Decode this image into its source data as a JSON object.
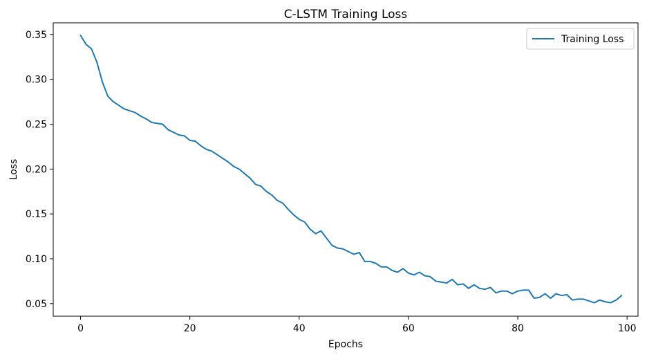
{
  "chart_data": {
    "type": "line",
    "title": "C-LSTM Training Loss",
    "xlabel": "Epochs",
    "ylabel": "Loss",
    "xlim": [
      -5,
      102
    ],
    "ylim": [
      0.036,
      0.363
    ],
    "xticks": [
      0,
      20,
      40,
      60,
      80,
      100
    ],
    "yticks": [
      0.05,
      0.1,
      0.15,
      0.2,
      0.25,
      0.3,
      0.35
    ],
    "xtick_labels": [
      "0",
      "20",
      "40",
      "60",
      "80",
      "100"
    ],
    "ytick_labels": [
      "0.05",
      "0.10",
      "0.15",
      "0.20",
      "0.25",
      "0.30",
      "0.35"
    ],
    "grid": false,
    "legend_position": "top-right",
    "series": [
      {
        "name": "Training Loss",
        "color": "#1f77b4",
        "x": [
          0,
          1,
          2,
          3,
          4,
          5,
          6,
          7,
          8,
          9,
          10,
          11,
          12,
          13,
          14,
          15,
          16,
          17,
          18,
          19,
          20,
          21,
          22,
          23,
          24,
          25,
          26,
          27,
          28,
          29,
          30,
          31,
          32,
          33,
          34,
          35,
          36,
          37,
          38,
          39,
          40,
          41,
          42,
          43,
          44,
          45,
          46,
          47,
          48,
          49,
          50,
          51,
          52,
          53,
          54,
          55,
          56,
          57,
          58,
          59,
          60,
          61,
          62,
          63,
          64,
          65,
          66,
          67,
          68,
          69,
          70,
          71,
          72,
          73,
          74,
          75,
          76,
          77,
          78,
          79,
          80,
          81,
          82,
          83,
          84,
          85,
          86,
          87,
          88,
          89,
          90,
          91,
          92,
          93,
          94,
          95,
          96,
          97,
          98,
          99
        ],
        "values": [
          0.349,
          0.339,
          0.334,
          0.319,
          0.297,
          0.281,
          0.275,
          0.271,
          0.267,
          0.265,
          0.263,
          0.259,
          0.256,
          0.252,
          0.251,
          0.25,
          0.244,
          0.241,
          0.238,
          0.237,
          0.232,
          0.231,
          0.226,
          0.222,
          0.22,
          0.216,
          0.212,
          0.208,
          0.203,
          0.2,
          0.195,
          0.19,
          0.183,
          0.181,
          0.175,
          0.171,
          0.165,
          0.162,
          0.155,
          0.149,
          0.144,
          0.141,
          0.133,
          0.128,
          0.131,
          0.123,
          0.115,
          0.112,
          0.111,
          0.108,
          0.105,
          0.107,
          0.097,
          0.097,
          0.095,
          0.091,
          0.091,
          0.087,
          0.085,
          0.089,
          0.084,
          0.082,
          0.085,
          0.081,
          0.08,
          0.075,
          0.074,
          0.073,
          0.077,
          0.071,
          0.072,
          0.067,
          0.071,
          0.067,
          0.066,
          0.068,
          0.062,
          0.064,
          0.064,
          0.061,
          0.064,
          0.065,
          0.065,
          0.056,
          0.057,
          0.061,
          0.056,
          0.061,
          0.059,
          0.06,
          0.054,
          0.055,
          0.055,
          0.053,
          0.051,
          0.054,
          0.052,
          0.051,
          0.054,
          0.059
        ]
      }
    ]
  }
}
